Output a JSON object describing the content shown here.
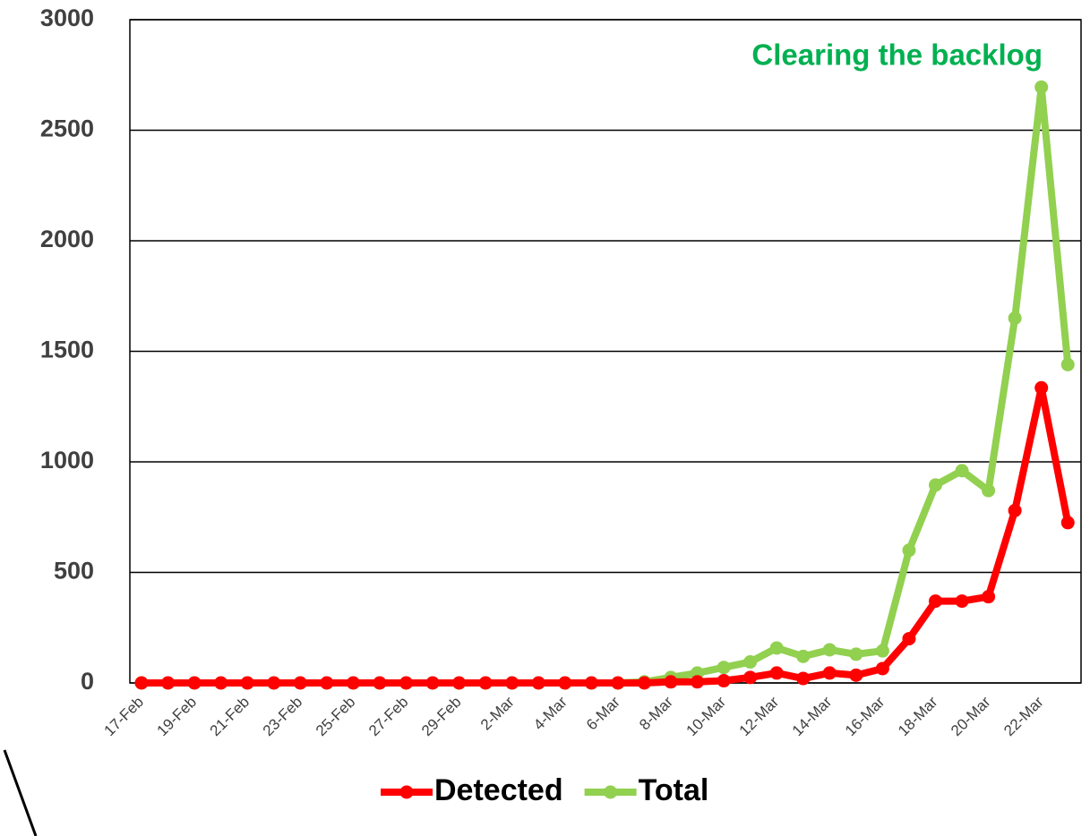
{
  "chart_data": {
    "type": "line",
    "annotation": "Clearing the backlog",
    "categories": [
      "17-Feb",
      null,
      "19-Feb",
      null,
      "21-Feb",
      null,
      "23-Feb",
      null,
      "25-Feb",
      null,
      "27-Feb",
      null,
      "29-Feb",
      null,
      "2-Mar",
      null,
      "4-Mar",
      null,
      "6-Mar",
      null,
      "8-Mar",
      null,
      "10-Mar",
      null,
      "12-Mar",
      null,
      "14-Mar",
      null,
      "16-Mar",
      null,
      "18-Mar",
      null,
      "20-Mar",
      null,
      "22-Mar",
      null
    ],
    "series": [
      {
        "name": "Detected",
        "color": "#ff0000",
        "values": [
          0,
          0,
          0,
          0,
          0,
          0,
          0,
          0,
          0,
          0,
          0,
          0,
          0,
          0,
          0,
          0,
          0,
          0,
          0,
          0,
          5,
          5,
          10,
          25,
          45,
          20,
          45,
          35,
          65,
          200,
          370,
          370,
          390,
          780,
          1335,
          725
        ]
      },
      {
        "name": "Total",
        "color": "#92d050",
        "values": [
          0,
          0,
          0,
          0,
          0,
          0,
          0,
          0,
          0,
          0,
          0,
          0,
          0,
          0,
          0,
          0,
          0,
          0,
          0,
          5,
          25,
          45,
          70,
          95,
          158,
          120,
          150,
          130,
          145,
          600,
          895,
          960,
          870,
          1650,
          2695,
          1440
        ]
      }
    ],
    "ylim": [
      0,
      3000
    ],
    "yticks": [
      0,
      500,
      1000,
      1500,
      2000,
      2500,
      3000
    ],
    "grid": true,
    "legend": "bottom"
  }
}
